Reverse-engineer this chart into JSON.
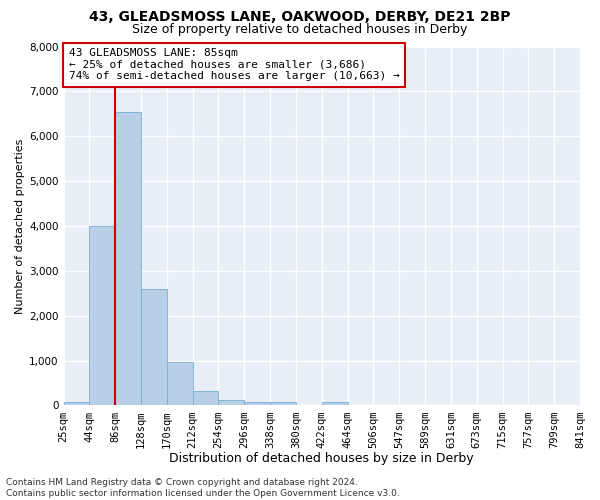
{
  "title1": "43, GLEADSMOSS LANE, OAKWOOD, DERBY, DE21 2BP",
  "title2": "Size of property relative to detached houses in Derby",
  "xlabel": "Distribution of detached houses by size in Derby",
  "ylabel": "Number of detached properties",
  "bar_heights": [
    70,
    4000,
    6550,
    2600,
    960,
    320,
    130,
    80,
    80,
    0,
    80,
    0,
    0,
    0,
    0,
    0,
    0,
    0,
    0,
    0
  ],
  "bar_color": "#b8cfe8",
  "bar_edge_color": "#7aadd4",
  "x_tick_labels": [
    "25sqm",
    "44sqm",
    "86sqm",
    "128sqm",
    "170sqm",
    "212sqm",
    "254sqm",
    "296sqm",
    "338sqm",
    "380sqm",
    "422sqm",
    "464sqm",
    "506sqm",
    "547sqm",
    "589sqm",
    "631sqm",
    "673sqm",
    "715sqm",
    "757sqm",
    "799sqm",
    "841sqm"
  ],
  "ylim": [
    0,
    8000
  ],
  "yticks": [
    0,
    1000,
    2000,
    3000,
    4000,
    5000,
    6000,
    7000,
    8000
  ],
  "property_bar_index": 1,
  "vline_color": "#cc0000",
  "annotation_text": "43 GLEADSMOSS LANE: 85sqm\n← 25% of detached houses are smaller (3,686)\n74% of semi-detached houses are larger (10,663) →",
  "annotation_box_color": "#ffffff",
  "annotation_box_edge_color": "#cc0000",
  "footer_text": "Contains HM Land Registry data © Crown copyright and database right 2024.\nContains public sector information licensed under the Open Government Licence v3.0.",
  "bg_color": "#ffffff",
  "plot_bg_color": "#e8eef5",
  "grid_color": "#ffffff",
  "title1_fontsize": 10,
  "title2_fontsize": 9,
  "xlabel_fontsize": 9,
  "ylabel_fontsize": 8,
  "tick_fontsize": 7.5,
  "annotation_fontsize": 8,
  "footer_fontsize": 6.5
}
